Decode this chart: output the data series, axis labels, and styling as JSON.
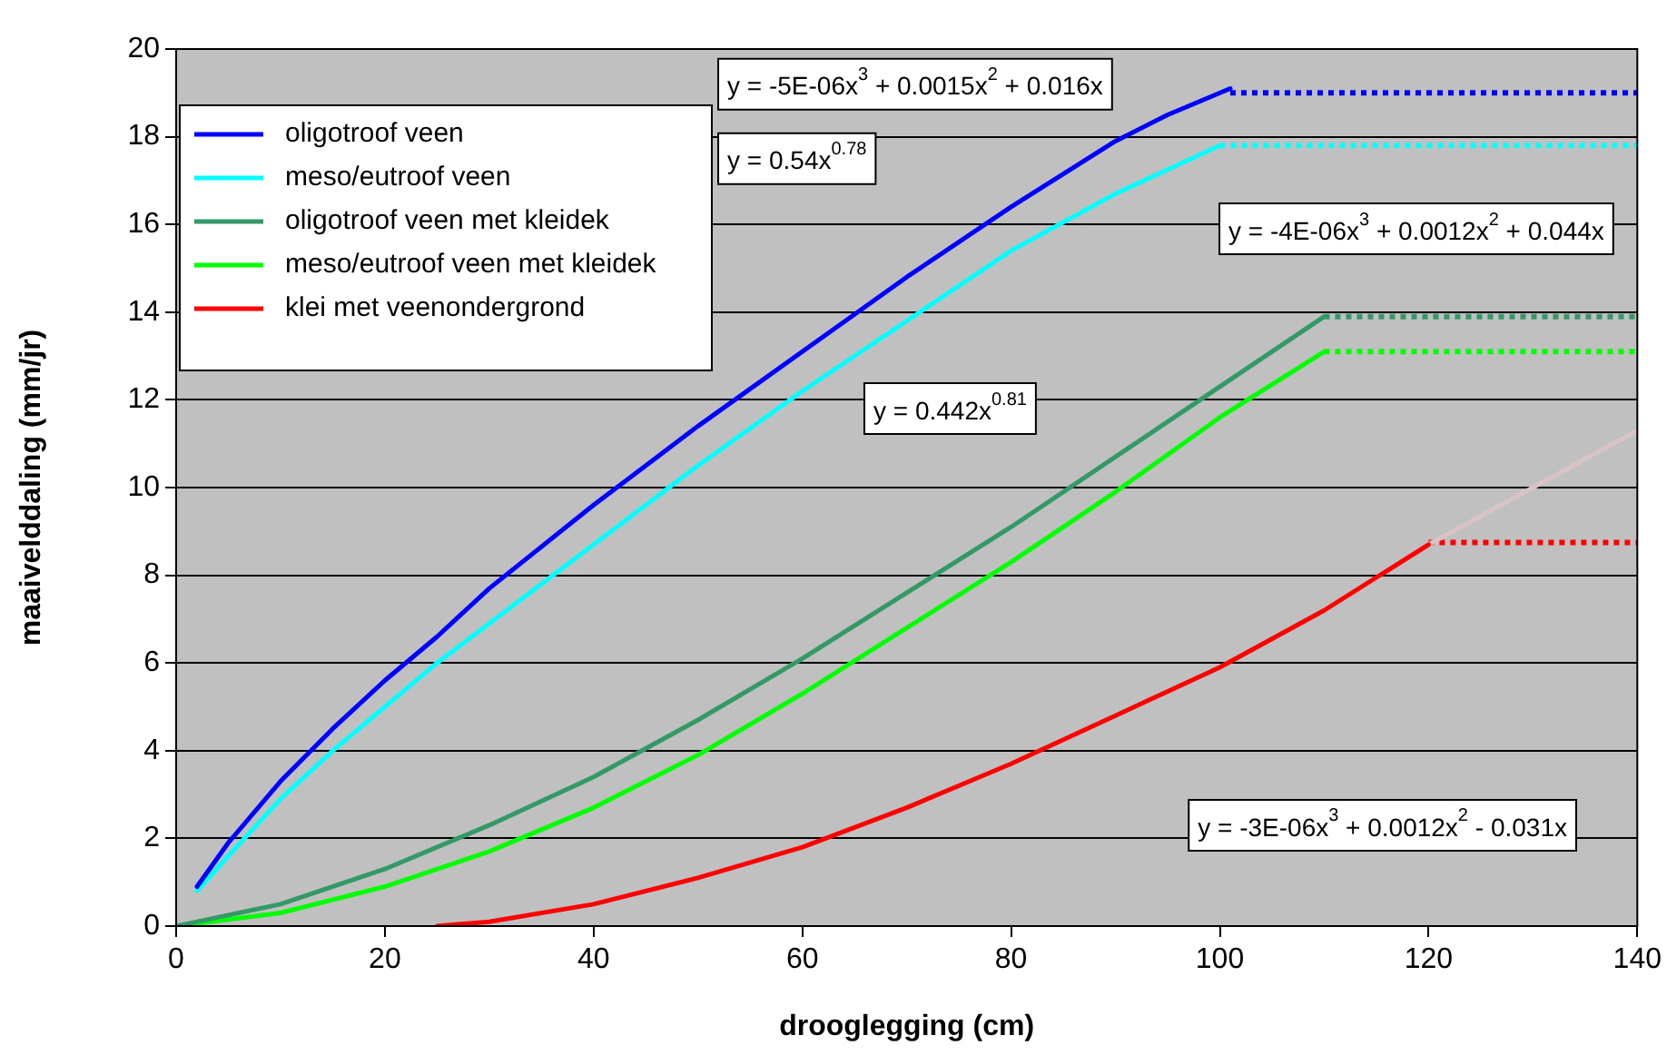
{
  "chart_data": {
    "type": "line",
    "xlabel": "drooglegging (cm)",
    "ylabel": "maaivelddaling (mm/jr)",
    "xlim": [
      0,
      140
    ],
    "xticks": [
      0,
      20,
      40,
      60,
      80,
      100,
      120,
      140
    ],
    "ylim": [
      0,
      20
    ],
    "yticks": [
      0,
      2,
      4,
      6,
      8,
      10,
      12,
      14,
      16,
      18,
      20
    ],
    "grid": "y",
    "legend": "top left",
    "marker": "none",
    "line_style": "solid",
    "series": [
      {
        "name": "oligotroof veen",
        "color": "#0000ff",
        "x": [
          2,
          5,
          10,
          15,
          20,
          25,
          30,
          40,
          50,
          60,
          70,
          80,
          90,
          95,
          101
        ],
        "values": [
          0.9,
          1.9,
          3.3,
          4.5,
          5.6,
          6.6,
          7.7,
          9.6,
          11.4,
          13.1,
          14.8,
          16.4,
          17.9,
          18.5,
          19.1
        ]
      },
      {
        "name": "meso/eutroof veen",
        "color": "#00ffff",
        "x": [
          2,
          5,
          10,
          15,
          20,
          25,
          30,
          40,
          50,
          60,
          70,
          80,
          90,
          100
        ],
        "values": [
          0.8,
          1.6,
          2.9,
          4.0,
          5.0,
          6.0,
          6.9,
          8.7,
          10.5,
          12.2,
          13.8,
          15.4,
          16.7,
          17.8
        ]
      },
      {
        "name": "oligotroof veen met kleidek",
        "color": "#339966",
        "x": [
          0,
          10,
          20,
          30,
          40,
          50,
          60,
          70,
          80,
          90,
          100,
          110
        ],
        "values": [
          0,
          0.5,
          1.3,
          2.3,
          3.4,
          4.7,
          6.1,
          7.6,
          9.1,
          10.7,
          12.3,
          13.9
        ]
      },
      {
        "name": "meso/eutroof veen met kleidek",
        "color": "#00ff00",
        "x": [
          0,
          10,
          20,
          30,
          40,
          50,
          60,
          70,
          80,
          90,
          100,
          110
        ],
        "values": [
          0,
          0.3,
          0.9,
          1.7,
          2.7,
          3.9,
          5.3,
          6.8,
          8.3,
          9.9,
          11.6,
          13.1
        ]
      },
      {
        "name": "klei met veenondergrond",
        "color": "#ff0000",
        "x": [
          25,
          30,
          40,
          50,
          60,
          70,
          80,
          90,
          100,
          110,
          120
        ],
        "values": [
          0,
          0.1,
          0.5,
          1.1,
          1.8,
          2.7,
          3.7,
          4.8,
          5.9,
          7.2,
          8.7
        ]
      },
      {
        "color": "#d8c4c4",
        "x": [
          120,
          130,
          140
        ],
        "values": [
          8.7,
          10.0,
          11.3
        ]
      },
      {
        "color": "#0000ff",
        "line_style": "dotted",
        "x": [
          101,
          140
        ],
        "values": [
          19.0,
          19.0
        ]
      },
      {
        "color": "#00ffff",
        "line_style": "dotted",
        "x": [
          100,
          140
        ],
        "values": [
          17.8,
          17.8
        ]
      },
      {
        "color": "#339966",
        "line_style": "dotted",
        "x": [
          110,
          140
        ],
        "values": [
          13.9,
          13.9
        ]
      },
      {
        "color": "#00ff00",
        "line_style": "dotted",
        "x": [
          110,
          140
        ],
        "values": [
          13.1,
          13.1
        ]
      },
      {
        "color": "#ff0000",
        "line_style": "dotted",
        "x": [
          120,
          140
        ],
        "values": [
          8.75,
          8.75
        ]
      }
    ],
    "annotations": [
      "y = 0.54x$^{0.78}$",
      "y = 0.442x$^{0.81}$",
      "y = -4E-06x$^{3}$ + 0.0012x$^{2}$ + 0.044x",
      "y = -5E-06x$^{3}$ + 0.0015x$^{2}$ + 0.016x",
      "y = -3E-06x$^{3}$ + 0.0012x$^{2}$ - 0.031x"
    ]
  }
}
